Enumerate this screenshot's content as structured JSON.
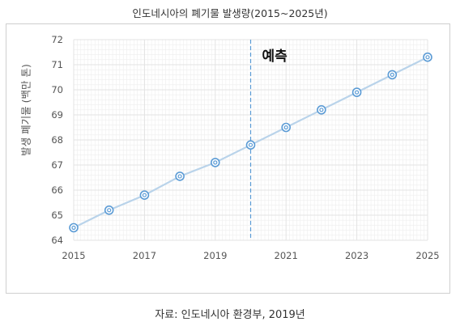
{
  "title": "인도네시아의 폐기물 발생량(2015~2025년)",
  "source": "자료: 인도네시아 환경부, 2019년",
  "chart_data": {
    "type": "line",
    "ylabel": "발생 폐기물 (백만 톤)",
    "xlabel": "",
    "x": [
      2015,
      2016,
      2017,
      2018,
      2019,
      2020,
      2021,
      2022,
      2023,
      2024,
      2025
    ],
    "x_tick_labels": [
      "2015",
      "2017",
      "2019",
      "2021",
      "2023",
      "2025"
    ],
    "y_tick_labels": [
      "64",
      "65",
      "66",
      "67",
      "68",
      "69",
      "70",
      "71",
      "72"
    ],
    "xlim": [
      2015,
      2025
    ],
    "ylim": [
      64,
      72
    ],
    "series": [
      {
        "values": [
          64.5,
          65.2,
          65.8,
          66.55,
          67.1,
          67.8,
          68.5,
          69.2,
          69.9,
          70.6,
          71.3
        ]
      }
    ],
    "forecast_start": 2020,
    "forecast_label": "예측",
    "grid": true,
    "colors": {
      "line": "#b9d3ea",
      "marker": "#5b9bd5",
      "forecast_line": "#5b9bd5",
      "grid": "#e3e3e3"
    }
  }
}
